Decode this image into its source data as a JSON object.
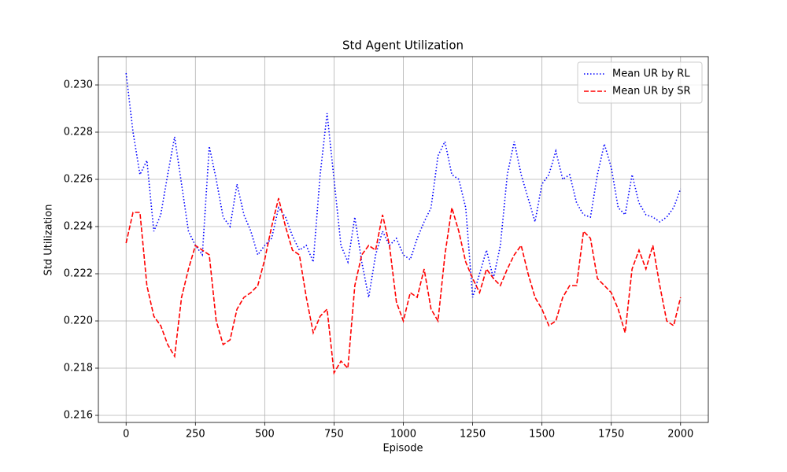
{
  "chart_data": {
    "type": "line",
    "title": "Std Agent Utilization",
    "xlabel": "Episode",
    "ylabel": "Std Utilization",
    "x": [
      0,
      25,
      50,
      75,
      100,
      125,
      150,
      175,
      200,
      225,
      250,
      275,
      300,
      325,
      350,
      375,
      400,
      425,
      450,
      475,
      500,
      525,
      550,
      575,
      600,
      625,
      650,
      675,
      700,
      725,
      750,
      775,
      800,
      825,
      850,
      875,
      900,
      925,
      950,
      975,
      1000,
      1025,
      1050,
      1075,
      1100,
      1125,
      1150,
      1175,
      1200,
      1225,
      1250,
      1275,
      1300,
      1325,
      1350,
      1375,
      1400,
      1425,
      1450,
      1475,
      1500,
      1525,
      1550,
      1575,
      1600,
      1625,
      1650,
      1675,
      1700,
      1725,
      1750,
      1775,
      1800,
      1825,
      1850,
      1875,
      1900,
      1925,
      1950,
      1975,
      2000
    ],
    "series": [
      {
        "name": "Mean UR by RL",
        "color": "#0000ff",
        "style": "dotted",
        "values": [
          0.2305,
          0.228,
          0.2262,
          0.2268,
          0.2238,
          0.2245,
          0.2262,
          0.2278,
          0.2258,
          0.2238,
          0.2232,
          0.2228,
          0.2274,
          0.226,
          0.2244,
          0.224,
          0.2258,
          0.2245,
          0.2238,
          0.2228,
          0.2232,
          0.2235,
          0.2248,
          0.2244,
          0.2236,
          0.223,
          0.2232,
          0.2225,
          0.2262,
          0.2288,
          0.226,
          0.2232,
          0.2225,
          0.2244,
          0.2225,
          0.221,
          0.2228,
          0.2238,
          0.2232,
          0.2235,
          0.2228,
          0.2226,
          0.2235,
          0.2242,
          0.2248,
          0.227,
          0.2276,
          0.2262,
          0.226,
          0.2248,
          0.221,
          0.222,
          0.223,
          0.2218,
          0.2232,
          0.2262,
          0.2276,
          0.2262,
          0.2252,
          0.2242,
          0.2258,
          0.2262,
          0.2272,
          0.226,
          0.2262,
          0.225,
          0.2245,
          0.2244,
          0.2262,
          0.2275,
          0.2265,
          0.2248,
          0.2245,
          0.2262,
          0.225,
          0.2245,
          0.2244,
          0.2242,
          0.2244,
          0.2248,
          0.2256
        ]
      },
      {
        "name": "Mean UR by SR",
        "color": "#ff0000",
        "style": "dashed",
        "values": [
          0.2233,
          0.2246,
          0.2246,
          0.2215,
          0.2202,
          0.2198,
          0.219,
          0.2185,
          0.221,
          0.2222,
          0.2232,
          0.223,
          0.2228,
          0.22,
          0.219,
          0.2192,
          0.2205,
          0.221,
          0.2212,
          0.2215,
          0.2226,
          0.224,
          0.2252,
          0.224,
          0.223,
          0.2228,
          0.221,
          0.2195,
          0.2202,
          0.2205,
          0.2178,
          0.2183,
          0.218,
          0.2215,
          0.2228,
          0.2232,
          0.223,
          0.2245,
          0.2232,
          0.2208,
          0.22,
          0.2212,
          0.221,
          0.2222,
          0.2205,
          0.22,
          0.2228,
          0.2248,
          0.2238,
          0.2225,
          0.2218,
          0.2212,
          0.2222,
          0.2218,
          0.2215,
          0.2222,
          0.2228,
          0.2232,
          0.222,
          0.221,
          0.2205,
          0.2198,
          0.22,
          0.221,
          0.2215,
          0.2215,
          0.2238,
          0.2235,
          0.2218,
          0.2215,
          0.2212,
          0.2205,
          0.2195,
          0.2222,
          0.223,
          0.2222,
          0.2232,
          0.2215,
          0.22,
          0.2198,
          0.221
        ]
      }
    ],
    "xlim": [
      -100,
      2100
    ],
    "ylim": [
      0.2157,
      0.2312
    ],
    "xticks": [
      0,
      250,
      500,
      750,
      1000,
      1250,
      1500,
      1750,
      2000
    ],
    "yticks": [
      0.216,
      0.218,
      {
        "value": 0.22,
        "label": "0.220"
      },
      0.222,
      0.224,
      0.226,
      0.228,
      {
        "value": 0.23,
        "label": "0.230"
      }
    ],
    "grid": true,
    "legend": "upper right"
  }
}
